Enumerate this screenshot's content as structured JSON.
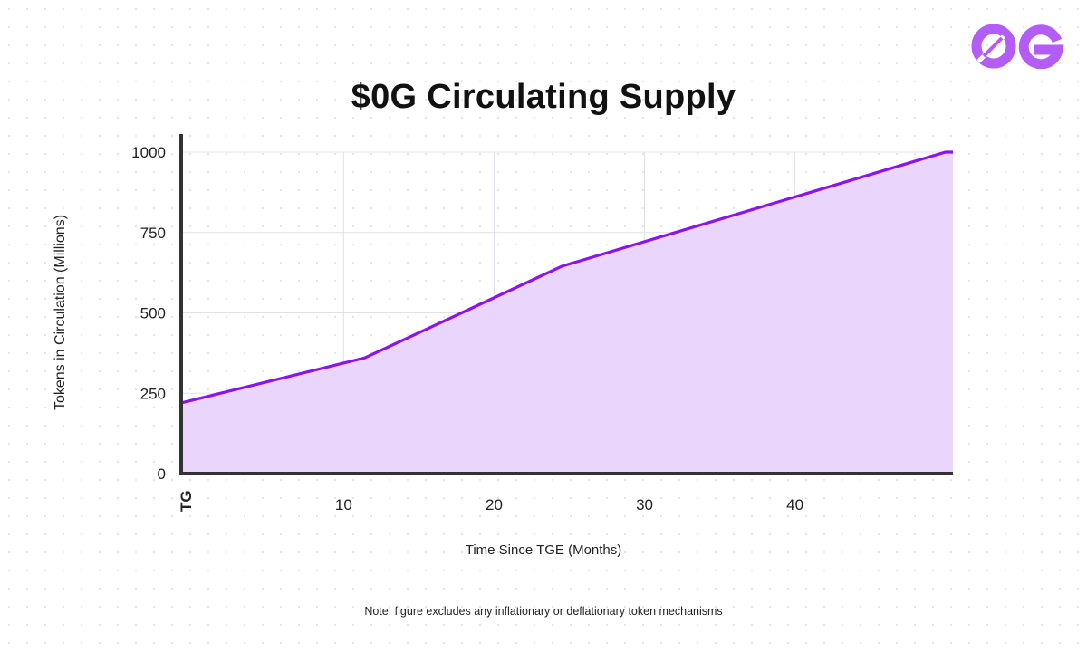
{
  "logo_text": "0G",
  "note": "Note: figure excludes any inflationary or deflationary token mechanisms",
  "colors": {
    "line": "#8a12f5",
    "fill": "#ead6fd",
    "axis": "#333333",
    "grid": "#e4e0ea",
    "logo": "#b45cf6"
  },
  "chart_data": {
    "type": "area",
    "title": "$0G Circulating Supply",
    "xlabel": "Time Since TGE  (Months)",
    "ylabel": "Tokens in Circulation (Millions)",
    "xlim": [
      -0.8,
      50.5
    ],
    "ylim": [
      0,
      1000
    ],
    "grid": true,
    "x_ticks": [
      {
        "value": -0.8,
        "label": "TG"
      },
      {
        "value": 10,
        "label": "10"
      },
      {
        "value": 20,
        "label": "20"
      },
      {
        "value": 30,
        "label": "30"
      },
      {
        "value": 40,
        "label": "40"
      }
    ],
    "y_ticks": [
      {
        "value": 0,
        "label": "0"
      },
      {
        "value": 250,
        "label": "250"
      },
      {
        "value": 500,
        "label": "500"
      },
      {
        "value": 750,
        "label": "750"
      },
      {
        "value": 1000,
        "label": "1000"
      }
    ],
    "series": [
      {
        "name": "Circulating Supply",
        "x": [
          -0.8,
          11.4,
          24.5,
          50,
          50.5
        ],
        "y": [
          220,
          360,
          645,
          1000,
          1000
        ]
      }
    ]
  }
}
